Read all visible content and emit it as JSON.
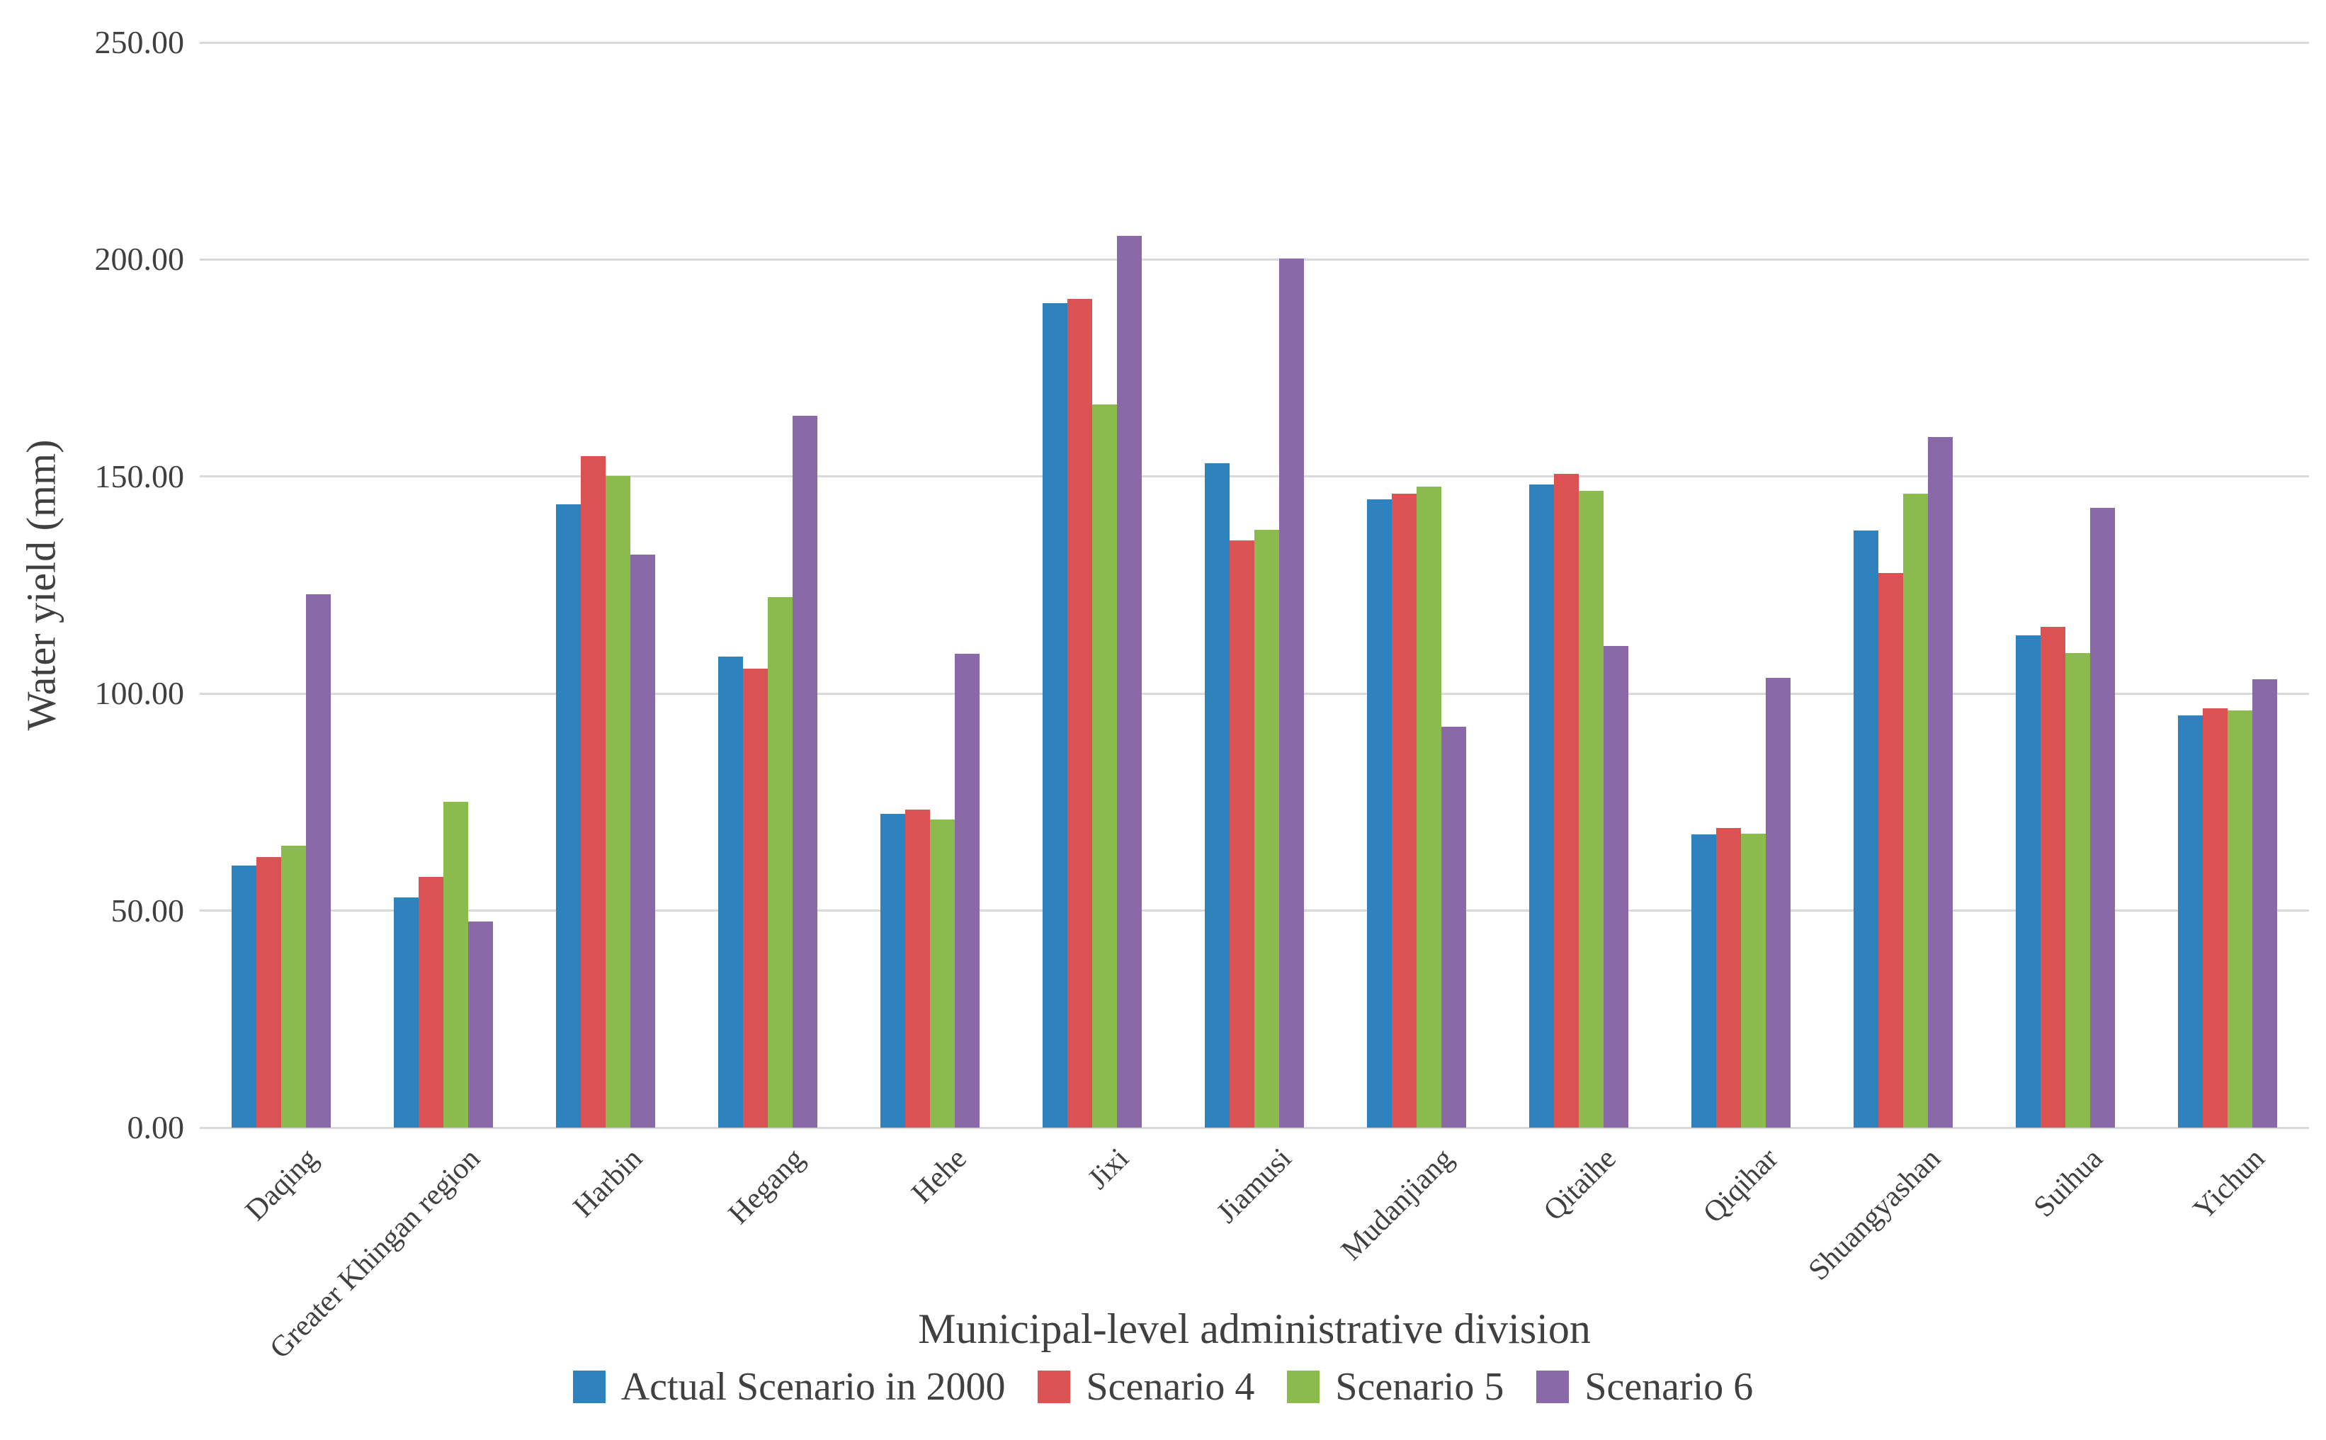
{
  "chart_data": {
    "type": "bar",
    "title": "",
    "categories": [
      "Daqing",
      "Greater Khingan region",
      "Harbin",
      "Hegang",
      "Hehe",
      "Jixi",
      "Jiamusi",
      "Mudanjiang",
      "Qitaihe",
      "Qiqihar",
      "Shuangyashan",
      "Suihua",
      "Yichun"
    ],
    "series": [
      {
        "name": "Actual Scenario in 2000",
        "color": "#2E82BE",
        "values": [
          60.3,
          53.0,
          143.6,
          108.5,
          72.3,
          189.9,
          153.1,
          144.8,
          148.2,
          67.6,
          137.5,
          113.4,
          95.0
        ]
      },
      {
        "name": "Scenario 4",
        "color": "#DB5252",
        "values": [
          62.4,
          57.8,
          154.7,
          105.7,
          73.3,
          191.0,
          135.3,
          146.0,
          150.7,
          69.1,
          127.7,
          115.3,
          96.6
        ]
      },
      {
        "name": "Scenario 5",
        "color": "#8CBB4D",
        "values": [
          64.9,
          75.0,
          150.2,
          122.3,
          71.0,
          166.6,
          137.8,
          147.7,
          146.7,
          67.8,
          146.1,
          109.3,
          96.1
        ]
      },
      {
        "name": "Scenario 6",
        "color": "#8A69A9",
        "values": [
          122.9,
          47.5,
          132.1,
          164.0,
          109.1,
          205.4,
          200.2,
          92.3,
          110.9,
          103.6,
          159.1,
          142.8,
          103.3
        ]
      }
    ],
    "xlabel": "Municipal-level administrative division",
    "ylabel": "Water yield (mm)",
    "ylim": [
      0,
      250
    ],
    "ytick_step": 50,
    "ytick_labels": [
      "0.00",
      "50.00",
      "100.00",
      "150.00",
      "200.00",
      "250.00"
    ],
    "grid": true,
    "legend_position": "bottom",
    "gridline_color": "#D9D9D9",
    "text_color": "#404040"
  }
}
